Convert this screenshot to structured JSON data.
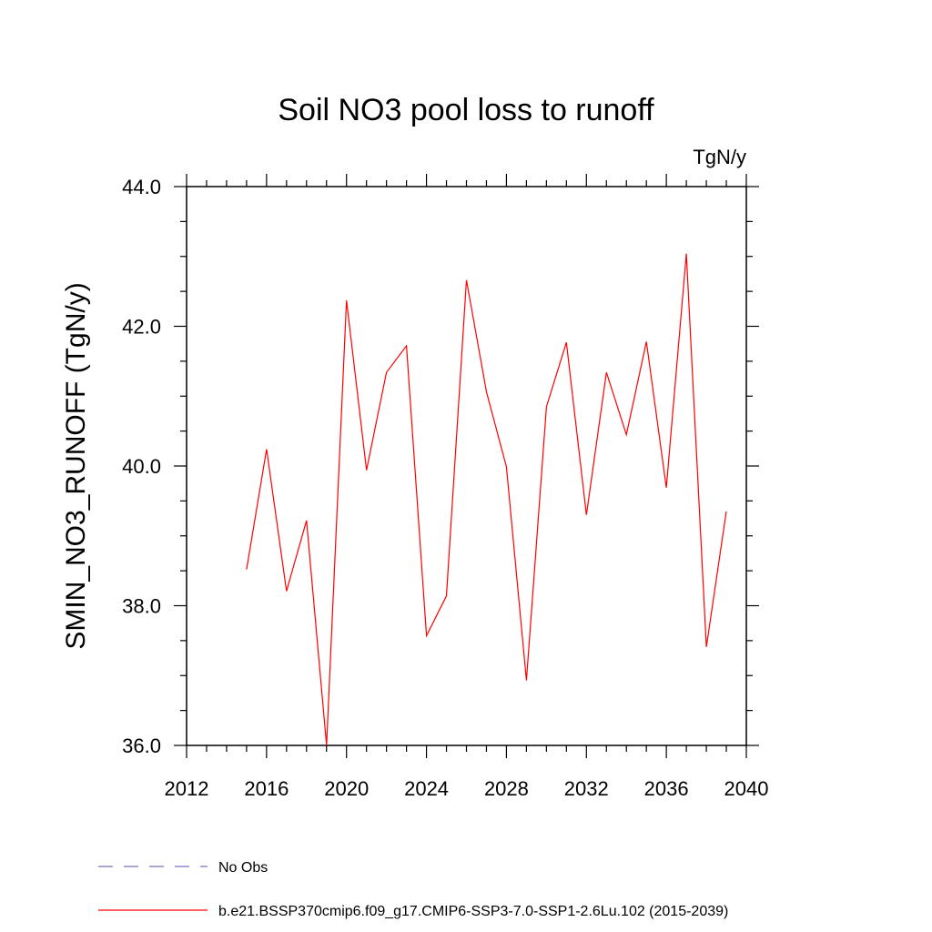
{
  "chart_data": {
    "type": "line",
    "title": "Soil NO3 pool loss to runoff",
    "units": "TgN/y",
    "xlabel": "",
    "ylabel": "SMIN_NO3_RUNOFF  (TgN/y)",
    "xlim": [
      2012,
      2040
    ],
    "ylim": [
      36.0,
      44.0
    ],
    "x_ticks": [
      2012,
      2016,
      2020,
      2024,
      2028,
      2032,
      2036,
      2040
    ],
    "y_ticks": [
      36.0,
      38.0,
      40.0,
      42.0,
      44.0
    ],
    "y_tick_labels": [
      "36.0",
      "38.0",
      "40.0",
      "42.0",
      "44.0"
    ],
    "grid": false,
    "legend_position": "bottom",
    "series": [
      {
        "name": "b.e21.BSSP370cmip6.f09_g17.CMIP6-SSP3-7.0-SSP1-2.6Lu.102 (2015-2039)",
        "color": "#ff0000",
        "style": "solid",
        "x": [
          2015,
          2016,
          2017,
          2018,
          2019,
          2020,
          2021,
          2022,
          2023,
          2024,
          2025,
          2026,
          2027,
          2028,
          2029,
          2030,
          2031,
          2032,
          2033,
          2034,
          2035,
          2036,
          2037,
          2038,
          2039
        ],
        "y": [
          38.52,
          40.24,
          38.21,
          39.22,
          36.0,
          42.37,
          39.94,
          41.34,
          41.72,
          37.57,
          38.14,
          42.66,
          41.06,
          39.99,
          36.93,
          40.85,
          41.77,
          39.3,
          41.34,
          40.45,
          41.78,
          39.69,
          43.04,
          37.41,
          39.35
        ]
      }
    ],
    "legend": [
      {
        "label": "No Obs",
        "color": "#7a6fc4",
        "style": "dashed"
      },
      {
        "label": "b.e21.BSSP370cmip6.f09_g17.CMIP6-SSP3-7.0-SSP1-2.6Lu.102 (2015-2039)",
        "color": "#ff0000",
        "style": "solid"
      }
    ]
  }
}
